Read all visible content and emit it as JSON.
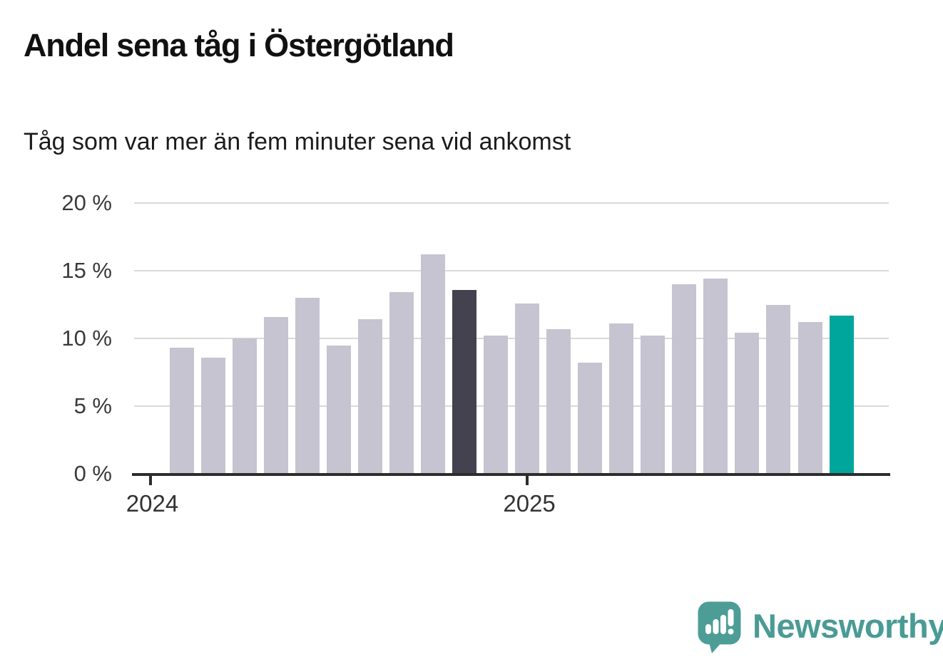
{
  "header": {
    "title": "Andel sena tåg i Östergötland",
    "subtitle": "Tåg som var mer än fem minuter sena vid ankomst"
  },
  "chart_data": {
    "type": "bar",
    "title": "Andel sena tåg i Östergötland",
    "subtitle": "Tåg som var mer än fem minuter sena vid ankomst",
    "unit": "%",
    "x": [
      "2024-01",
      "2024-02",
      "2024-03",
      "2024-04",
      "2024-05",
      "2024-06",
      "2024-07",
      "2024-08",
      "2024-09",
      "2024-10",
      "2024-11",
      "2024-12",
      "2025-01",
      "2025-02",
      "2025-03",
      "2025-04",
      "2025-05",
      "2025-06",
      "2025-07",
      "2025-08",
      "2025-09",
      "2025-10"
    ],
    "values": [
      9.3,
      8.6,
      10.0,
      11.6,
      13.0,
      9.5,
      11.4,
      13.4,
      16.2,
      13.6,
      10.2,
      12.6,
      10.7,
      8.2,
      11.1,
      10.2,
      14.0,
      14.4,
      10.4,
      12.5,
      11.2,
      11.7
    ],
    "highlight_dark_index": 9,
    "highlight_teal_index": 21,
    "colors": {
      "bar_default": "#c6c4d0",
      "bar_highlight_dark": "#44424f",
      "bar_highlight_teal": "#00a59b",
      "gridline": "#d9d9dc",
      "axis": "#2d2d2d"
    },
    "ylim": [
      0,
      20
    ],
    "yticks": [
      {
        "value": 20,
        "label": "20 %"
      },
      {
        "value": 15,
        "label": "15 %"
      },
      {
        "value": 10,
        "label": "10 %"
      },
      {
        "value": 5,
        "label": "5 %"
      },
      {
        "value": 0,
        "label": "0 %"
      }
    ],
    "xticks": [
      {
        "month_index": 0,
        "label": "2024"
      },
      {
        "month_index": 12,
        "label": "2025"
      }
    ],
    "grid": "horizontal",
    "legend": "none"
  },
  "footer": {
    "brand": "Newsworthy",
    "brand_color": "#4a9b95"
  }
}
